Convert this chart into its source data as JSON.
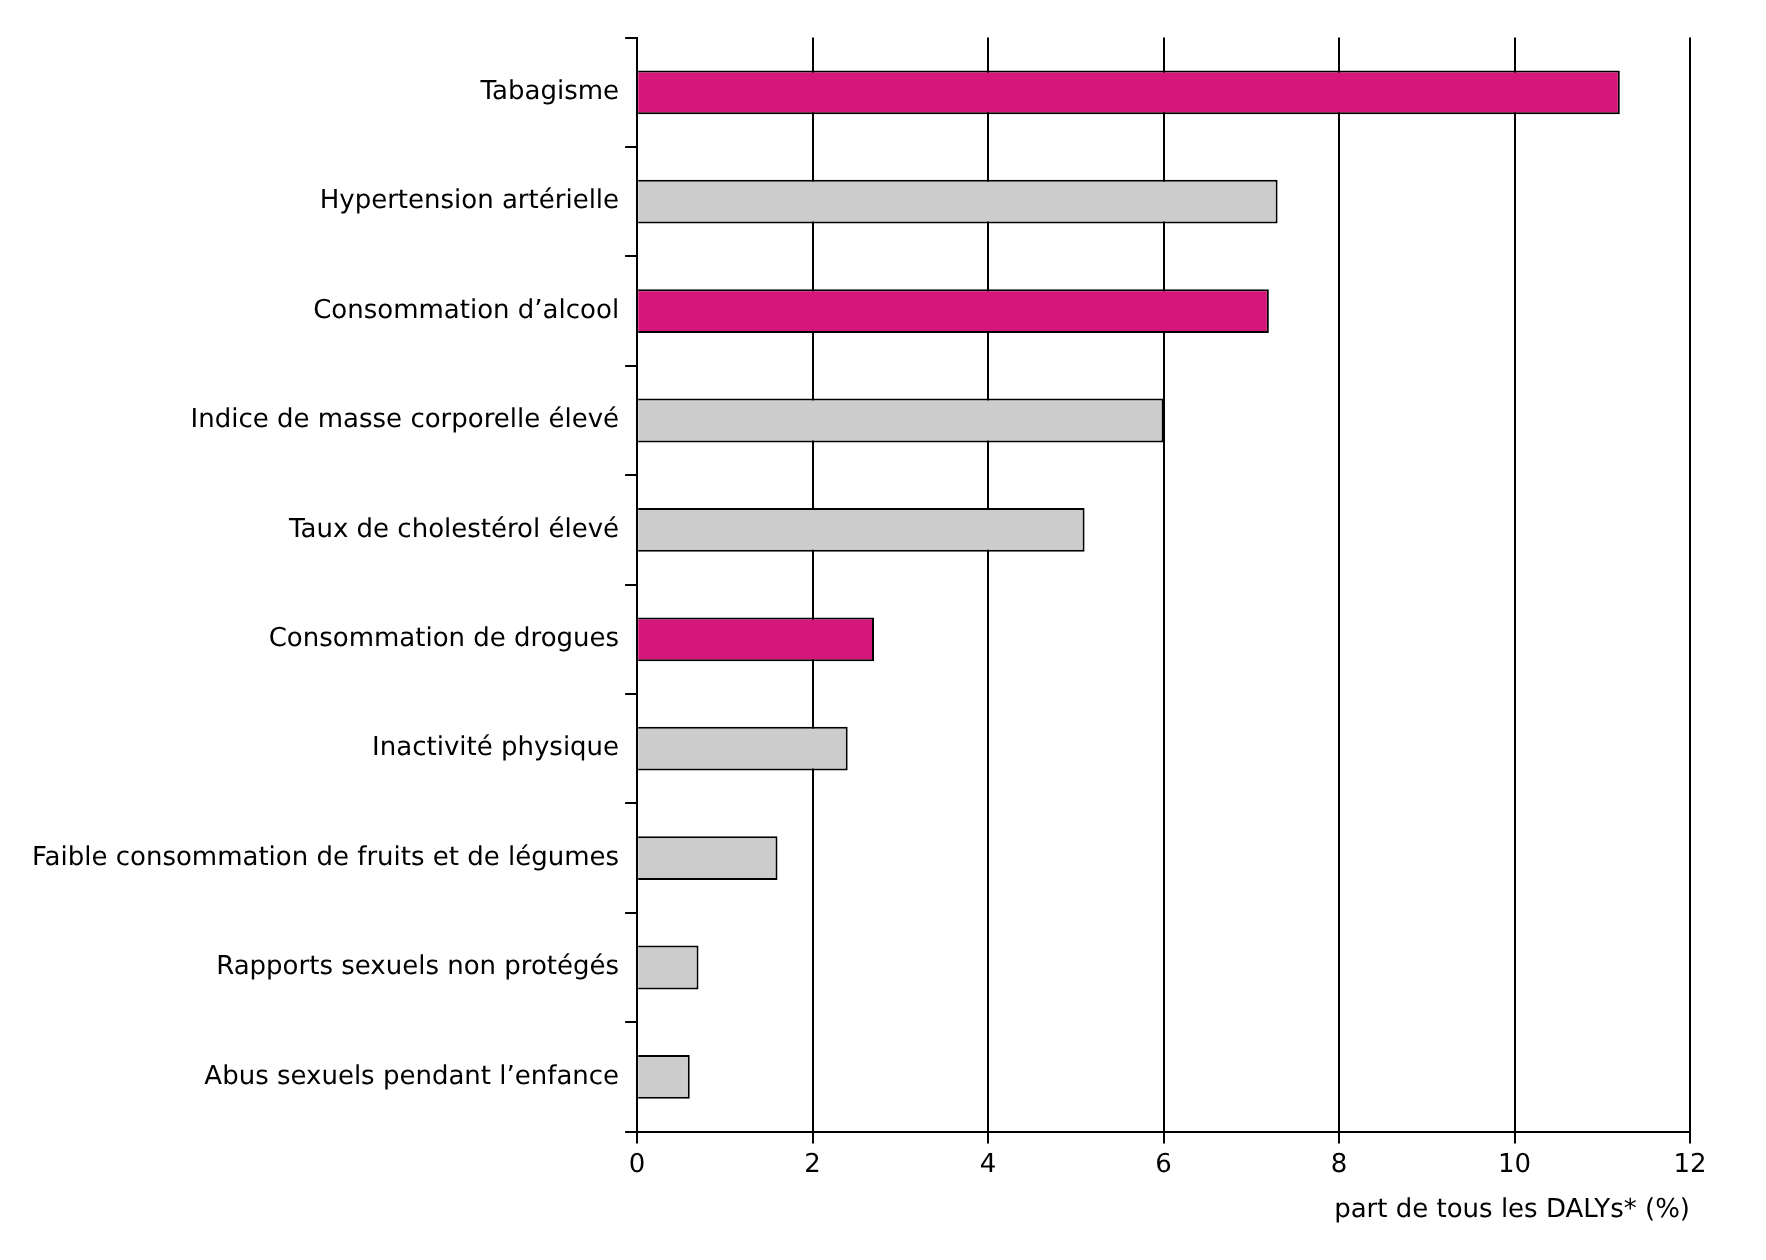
{
  "chart_data": {
    "type": "bar",
    "orientation": "horizontal",
    "xlabel": "part de tous les DALYs* (%)",
    "categories": [
      "Tabagisme",
      "Hypertension artérielle",
      "Consommation d’alcool",
      "Indice de masse corporelle élevé",
      "Taux de cholestérol élevé",
      "Consommation de drogues",
      "Inactivité physique",
      "Faible consommation de fruits et de légumes",
      "Rapports sexuels non protégés",
      "Abus sexuels pendant l’enfance"
    ],
    "values": [
      11.2,
      7.3,
      7.2,
      6.0,
      5.1,
      2.7,
      2.4,
      1.6,
      0.7,
      0.6
    ],
    "colors": [
      "#d6177a",
      "#cccccc",
      "#d6177a",
      "#cccccc",
      "#cccccc",
      "#d6177a",
      "#cccccc",
      "#cccccc",
      "#cccccc",
      "#cccccc"
    ],
    "xlim": [
      0,
      12
    ],
    "xticks": [
      0,
      2,
      4,
      6,
      8,
      10,
      12
    ],
    "grid": "x",
    "legend": false
  }
}
